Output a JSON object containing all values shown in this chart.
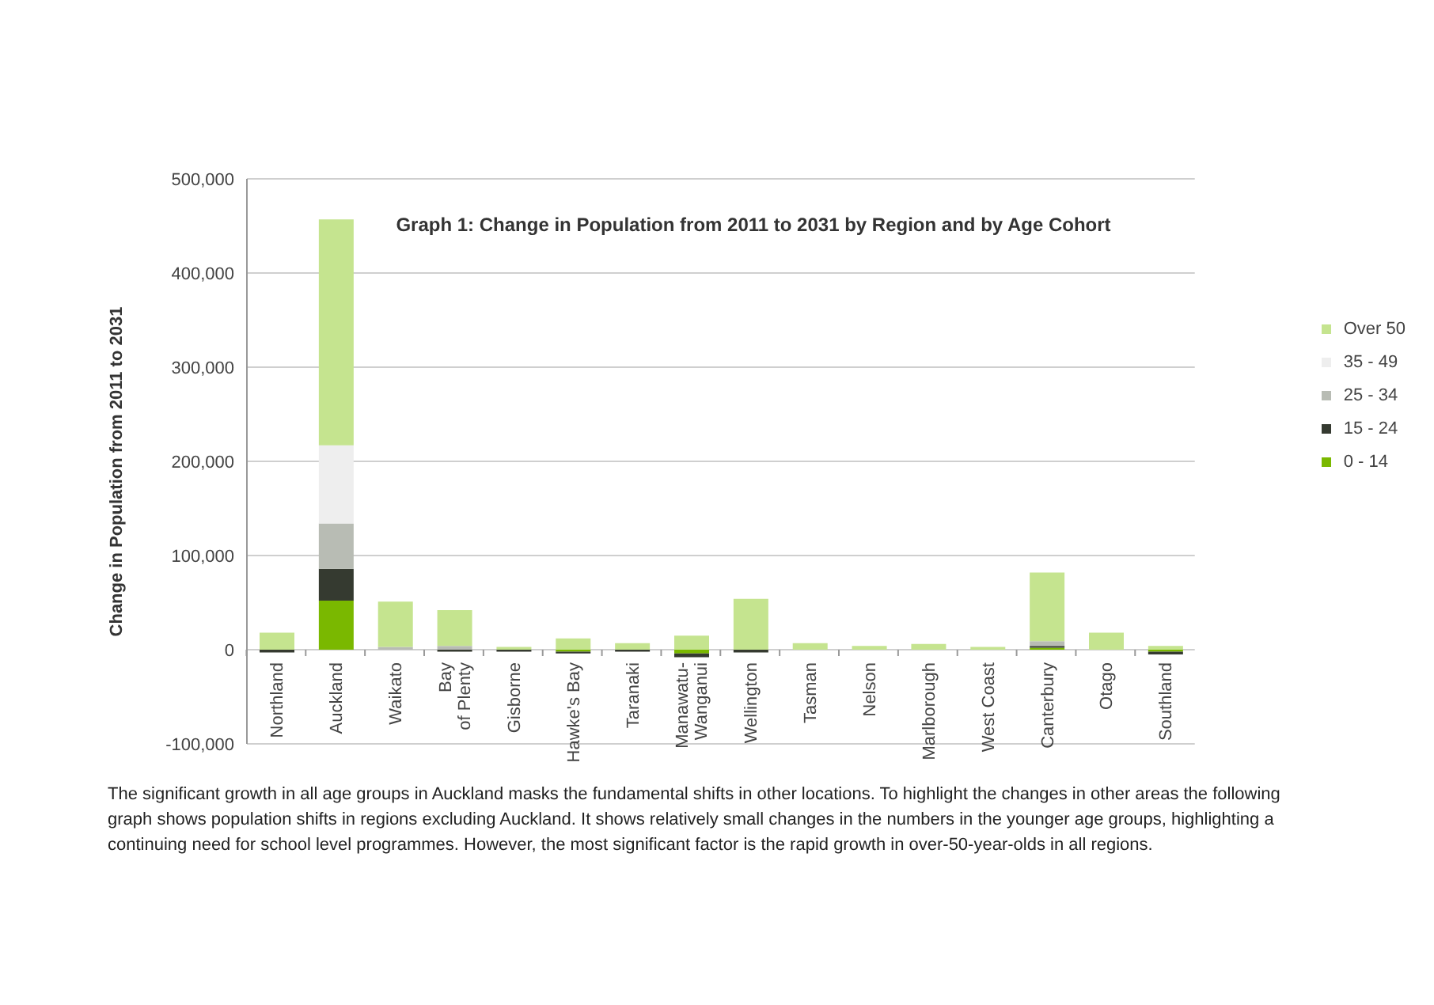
{
  "chart_data": {
    "type": "bar",
    "title": "Graph 1: Change in Population from 2011 to 2031 by Region and by Age Cohort",
    "ylabel": "Change in Population from 2011 to 2031",
    "categories": [
      "Northland",
      "Auckland",
      "Waikato",
      "Bay of Plenty",
      "Gisborne",
      "Hawke's Bay",
      "Taranaki",
      "Manawatu-Wanganui",
      "Wellington",
      "Tasman",
      "Nelson",
      "Marlborough",
      "West Coast",
      "Canterbury",
      "Otago",
      "Southland"
    ],
    "stacked": true,
    "series": [
      {
        "name": "0 - 14",
        "color": "#7ab800",
        "values": [
          0,
          52000,
          0,
          0,
          0,
          -2000,
          0,
          -4000,
          0,
          0,
          0,
          0,
          0,
          2000,
          0,
          -2000
        ]
      },
      {
        "name": "15 - 24",
        "color": "#353a30",
        "values": [
          -3000,
          34000,
          0,
          -2000,
          -2000,
          -2000,
          -2000,
          -4000,
          -3000,
          0,
          0,
          0,
          0,
          2000,
          0,
          -3000
        ]
      },
      {
        "name": "25 - 34",
        "color": "#b8bcb4",
        "values": [
          0,
          48000,
          3000,
          4000,
          0,
          0,
          0,
          0,
          0,
          0,
          0,
          0,
          0,
          5000,
          null,
          0
        ]
      },
      {
        "name": "35 - 49",
        "color": "#eeeeee",
        "values": [
          0,
          83000,
          0,
          null,
          0,
          0,
          0,
          0,
          null,
          0,
          0,
          0,
          0,
          null,
          0,
          0
        ]
      },
      {
        "name": "Over 50",
        "color": "#c5e48f",
        "values": [
          18000,
          240000,
          48000,
          38000,
          3000,
          12000,
          7000,
          15000,
          54000,
          7000,
          4000,
          6000,
          3000,
          73000,
          18000,
          4000
        ]
      }
    ],
    "ylim": [
      -100000,
      500000
    ],
    "yticks": [
      {
        "value": -100000,
        "label": "-100,000"
      },
      {
        "value": 0,
        "label": "0"
      },
      {
        "value": 100000,
        "label": "100,000"
      },
      {
        "value": 200000,
        "label": "200,000"
      },
      {
        "value": 300000,
        "label": "300,000"
      },
      {
        "value": 400000,
        "label": "400,000"
      },
      {
        "value": 500000,
        "label": "500,000"
      }
    ],
    "grid": "y",
    "legend": "right",
    "annotations": [
      "The significant growth in all age groups in Auckland masks the fundamental shifts in other locations. To highlight the changes in other areas the following graph shows population shifts in regions excluding Auckland. It shows relatively small changes in the numbers in the younger age groups, highlighting a continuing need for school level programmes. However, the most significant factor is the rapid growth in over-50-year-olds in all regions."
    ]
  }
}
